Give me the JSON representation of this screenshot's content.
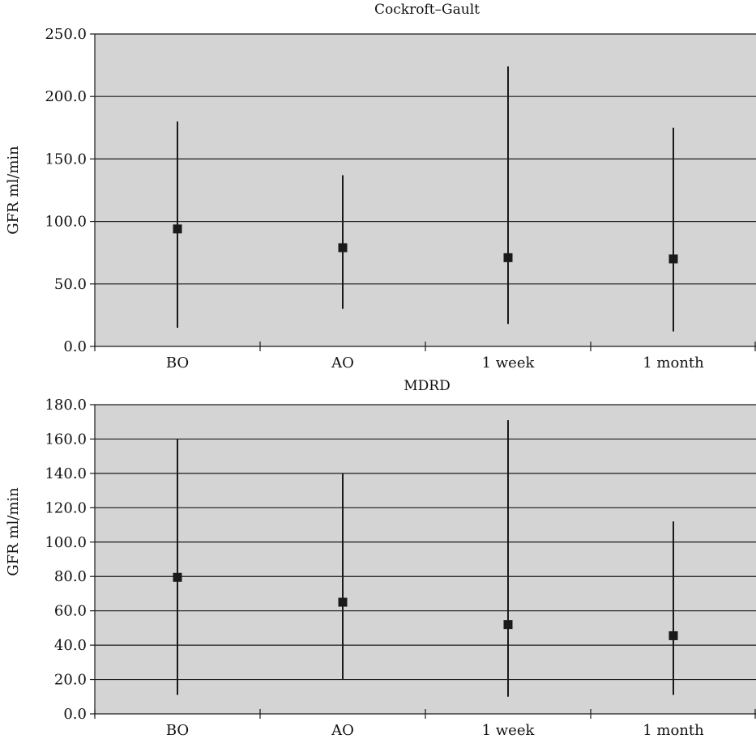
{
  "chart_data": [
    {
      "type": "scatter",
      "title": "Cockroft–Gault",
      "ylabel": "GFR ml/min",
      "xlabel": "",
      "categories": [
        "BO",
        "AO",
        "1 week",
        "1 month"
      ],
      "ylim": [
        0,
        250
      ],
      "yticks": [
        "0.0",
        "50.0",
        "100.0",
        "150.0",
        "200.0",
        "250.0"
      ],
      "ytick_values": [
        0,
        50,
        100,
        150,
        200,
        250
      ],
      "grid": true,
      "series": [
        {
          "mean": [
            94,
            79,
            71,
            70
          ],
          "min": [
            15,
            30,
            18,
            12
          ],
          "max": [
            180,
            137,
            224,
            175
          ]
        }
      ]
    },
    {
      "type": "scatter",
      "title": "MDRD",
      "ylabel": "GFR ml/min",
      "xlabel": "",
      "categories": [
        "BO",
        "AO",
        "1 week",
        "1 month"
      ],
      "ylim": [
        0,
        180
      ],
      "yticks": [
        "0.0",
        "20.0",
        "40.0",
        "60.0",
        "80.0",
        "100.0",
        "120.0",
        "140.0",
        "160.0",
        "180.0"
      ],
      "ytick_values": [
        0,
        20,
        40,
        60,
        80,
        100,
        120,
        140,
        160,
        180
      ],
      "grid": true,
      "series": [
        {
          "mean": [
            79.5,
            65,
            52,
            45.5
          ],
          "min": [
            11,
            20,
            10,
            11
          ],
          "max": [
            160,
            140,
            171,
            112
          ]
        }
      ]
    }
  ]
}
